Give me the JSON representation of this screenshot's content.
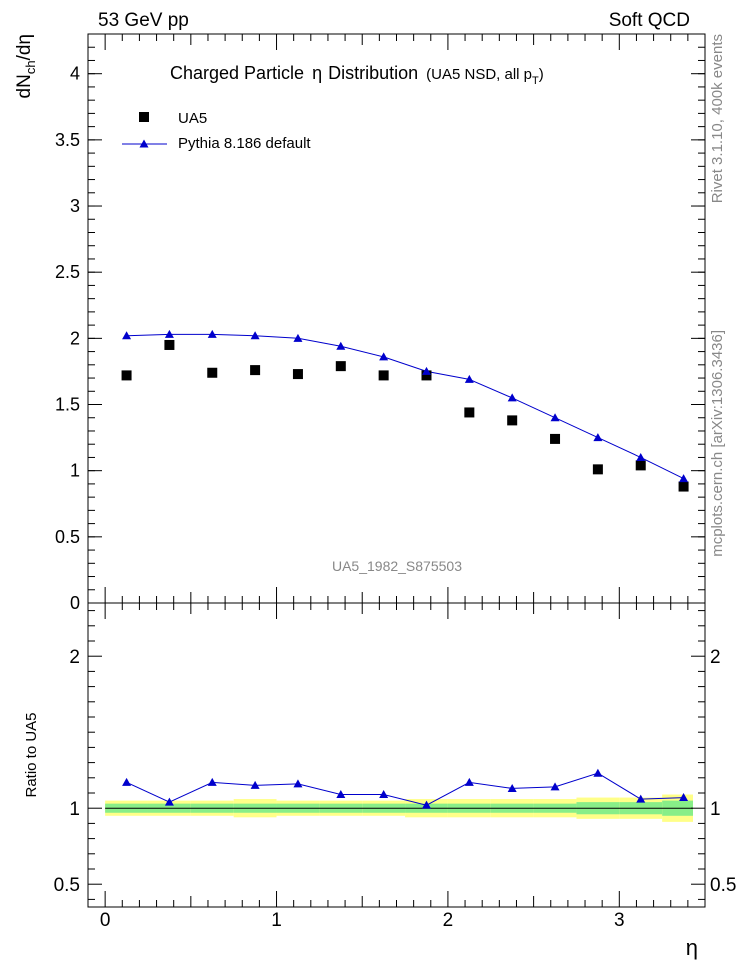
{
  "chart_data": [
    {
      "type": "scatter",
      "header_left": "53 GeV pp",
      "header_right": "Soft QCD",
      "title_main": "Charged Particle",
      "title_eta": "η",
      "title_rest": "Distribution",
      "title_sub": "(UA5 NSD, all p",
      "title_sub_T": "T",
      "title_sub_close": ")",
      "ylabel_pre": "dN",
      "ylabel_sub": "ch",
      "ylabel_post": "/dη",
      "xlim": [
        -0.1,
        3.5
      ],
      "ylim": [
        0,
        4.3
      ],
      "yticks": [
        "0",
        "0.5",
        "1",
        "1.5",
        "2",
        "2.5",
        "3",
        "3.5",
        "4"
      ],
      "ytick_values": [
        0,
        0.5,
        1,
        1.5,
        2,
        2.5,
        3,
        3.5,
        4
      ],
      "watermark": "UA5_1982_S875503",
      "side_label_top": "Rivet 3.1.10,  400k events",
      "side_label_bottom": "mcplots.cern.ch [arXiv:1306.3436]",
      "legend": [
        {
          "name": "UA5",
          "marker": "square",
          "color": "#000000"
        },
        {
          "name": "Pythia 8.186 default",
          "marker": "triangle",
          "color": "#0000cc"
        }
      ],
      "x": [
        0.125,
        0.375,
        0.625,
        0.875,
        1.125,
        1.375,
        1.625,
        1.875,
        2.125,
        2.375,
        2.625,
        2.875,
        3.125,
        3.375
      ],
      "series": [
        {
          "name": "UA5",
          "values": [
            1.72,
            1.95,
            1.74,
            1.76,
            1.73,
            1.79,
            1.72,
            1.72,
            1.44,
            1.38,
            1.24,
            1.01,
            1.04,
            0.88
          ]
        },
        {
          "name": "Pythia 8.186 default",
          "values": [
            2.02,
            2.03,
            2.03,
            2.02,
            2.0,
            1.94,
            1.86,
            1.75,
            1.69,
            1.55,
            1.4,
            1.25,
            1.1,
            0.94
          ]
        }
      ]
    },
    {
      "type": "line",
      "ylabel": "Ratio to UA5",
      "xlabel": "η",
      "xlim": [
        -0.1,
        3.5
      ],
      "ylim": [
        0.35,
        2.35
      ],
      "yticks": [
        "0.5",
        "1",
        "2"
      ],
      "ytick_values": [
        0.5,
        1,
        2
      ],
      "xticks": [
        "0",
        "1",
        "2",
        "3"
      ],
      "xtick_values": [
        0,
        1,
        2,
        3
      ],
      "x": [
        0.125,
        0.375,
        0.625,
        0.875,
        1.125,
        1.375,
        1.625,
        1.875,
        2.125,
        2.375,
        2.625,
        2.875,
        3.125,
        3.375
      ],
      "bin_edges": [
        0,
        0.25,
        0.5,
        0.75,
        1.0,
        1.25,
        1.5,
        1.75,
        2.0,
        2.25,
        2.5,
        2.75,
        3.0,
        3.25,
        3.5
      ],
      "band_stat": [
        0.03,
        0.03,
        0.03,
        0.03,
        0.03,
        0.03,
        0.03,
        0.03,
        0.03,
        0.03,
        0.03,
        0.04,
        0.04,
        0.05
      ],
      "band_total": [
        0.05,
        0.05,
        0.05,
        0.06,
        0.05,
        0.05,
        0.05,
        0.06,
        0.06,
        0.06,
        0.06,
        0.07,
        0.07,
        0.09
      ],
      "series": [
        {
          "name": "Pythia 8.186 default / UA5",
          "values": [
            1.17,
            1.04,
            1.17,
            1.15,
            1.16,
            1.09,
            1.09,
            1.02,
            1.17,
            1.13,
            1.14,
            1.23,
            1.06,
            1.07
          ]
        }
      ]
    }
  ]
}
